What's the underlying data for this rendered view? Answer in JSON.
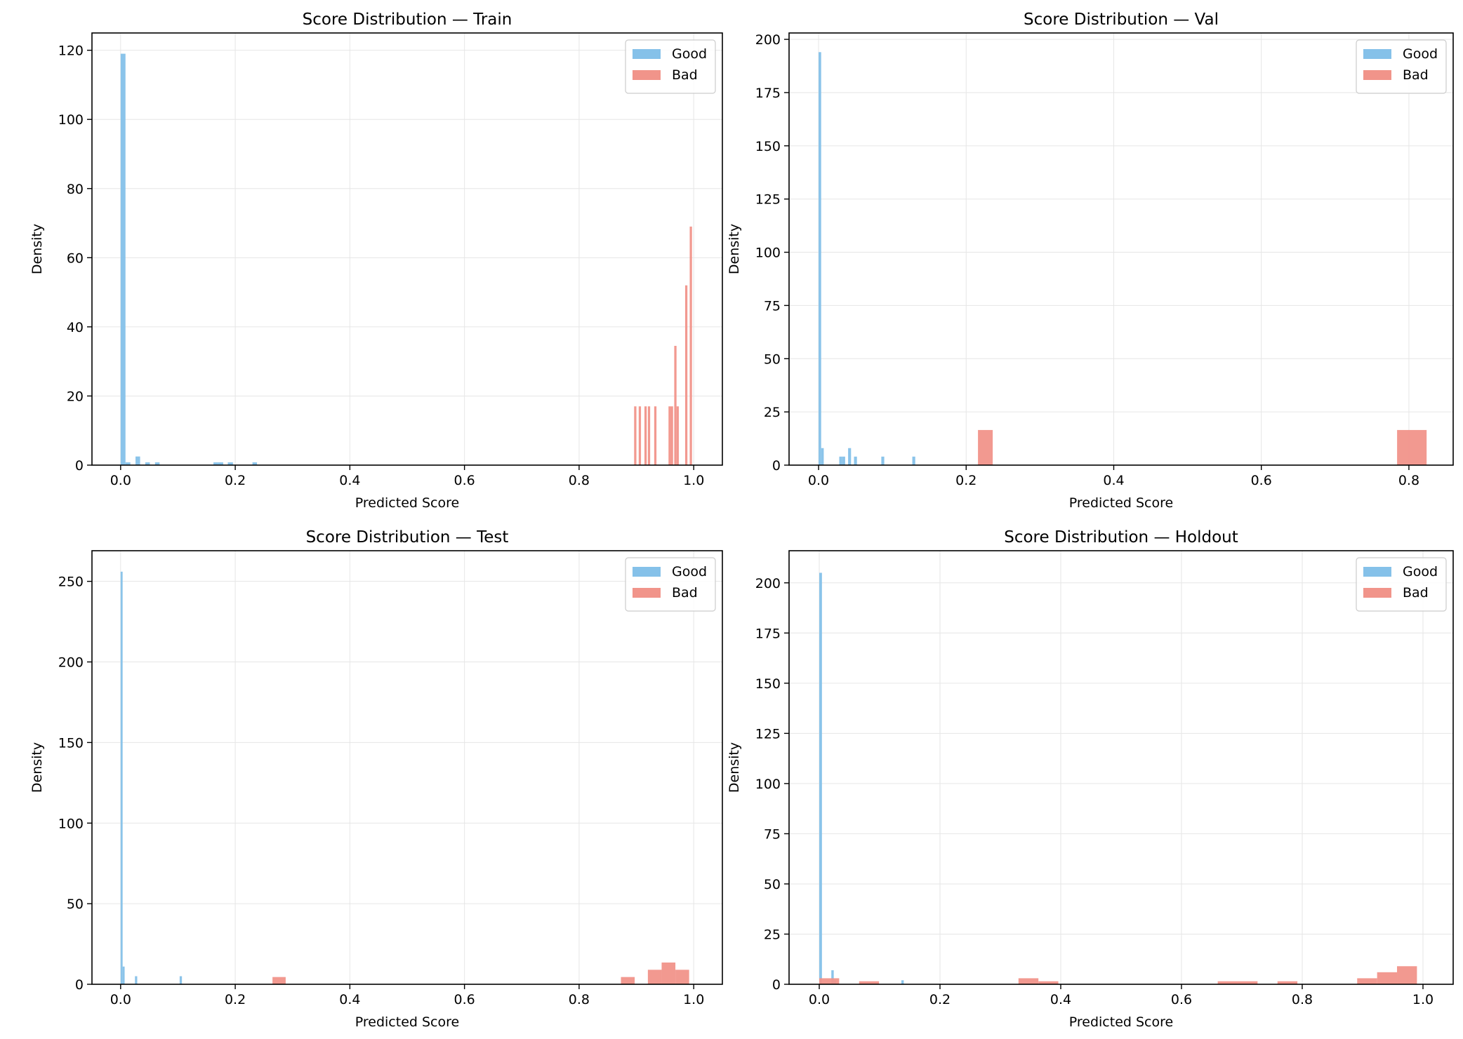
{
  "colors": {
    "good": "#85c1e9",
    "bad": "#f1948a"
  },
  "chart_data": [
    {
      "type": "histogram",
      "title": "Score Distribution — Train",
      "xlabel": "Predicted Score",
      "ylabel": "Density",
      "xlim": [
        -0.05,
        1.05
      ],
      "ylim": [
        0,
        125
      ],
      "xticks": [
        "0.0",
        "0.2",
        "0.4",
        "0.6",
        "0.8",
        "1.0"
      ],
      "yticks": [
        "0",
        "20",
        "40",
        "60",
        "80",
        "100",
        "120"
      ],
      "grid": true,
      "legend": {
        "position": "top-right",
        "entries": [
          "Good",
          "Bad"
        ]
      },
      "series": [
        {
          "name": "Good",
          "bins": [
            {
              "x0": 0.0,
              "x1": 0.0085,
              "y": 119
            },
            {
              "x0": 0.0085,
              "x1": 0.017,
              "y": 0.8
            },
            {
              "x0": 0.026,
              "x1": 0.034,
              "y": 2.5
            },
            {
              "x0": 0.043,
              "x1": 0.051,
              "y": 0.8
            },
            {
              "x0": 0.06,
              "x1": 0.068,
              "y": 0.8
            },
            {
              "x0": 0.162,
              "x1": 0.17,
              "y": 0.8
            },
            {
              "x0": 0.17,
              "x1": 0.179,
              "y": 0.8
            },
            {
              "x0": 0.187,
              "x1": 0.196,
              "y": 0.8
            },
            {
              "x0": 0.23,
              "x1": 0.238,
              "y": 0.8
            }
          ]
        },
        {
          "name": "Bad",
          "bins": [
            {
              "x0": 0.896,
              "x1": 0.9,
              "y": 17
            },
            {
              "x0": 0.904,
              "x1": 0.908,
              "y": 17
            },
            {
              "x0": 0.914,
              "x1": 0.918,
              "y": 17
            },
            {
              "x0": 0.92,
              "x1": 0.924,
              "y": 17
            },
            {
              "x0": 0.931,
              "x1": 0.935,
              "y": 17
            },
            {
              "x0": 0.956,
              "x1": 0.96,
              "y": 17
            },
            {
              "x0": 0.96,
              "x1": 0.964,
              "y": 17
            },
            {
              "x0": 0.966,
              "x1": 0.97,
              "y": 34.5
            },
            {
              "x0": 0.97,
              "x1": 0.974,
              "y": 17
            },
            {
              "x0": 0.985,
              "x1": 0.989,
              "y": 52
            },
            {
              "x0": 0.993,
              "x1": 0.997,
              "y": 69
            }
          ]
        }
      ]
    },
    {
      "type": "histogram",
      "title": "Score Distribution — Val",
      "xlabel": "Predicted Score",
      "ylabel": "Density",
      "xlim": [
        -0.04,
        0.86
      ],
      "ylim": [
        0,
        203
      ],
      "xticks": [
        "0.0",
        "0.2",
        "0.4",
        "0.6",
        "0.8"
      ],
      "yticks": [
        "0",
        "25",
        "50",
        "75",
        "100",
        "125",
        "150",
        "175",
        "200"
      ],
      "grid": true,
      "legend": {
        "position": "top-right",
        "entries": [
          "Good",
          "Bad"
        ]
      },
      "series": [
        {
          "name": "Good",
          "bins": [
            {
              "x0": 0.0,
              "x1": 0.0035,
              "y": 194
            },
            {
              "x0": 0.0035,
              "x1": 0.007,
              "y": 8
            },
            {
              "x0": 0.028,
              "x1": 0.032,
              "y": 4
            },
            {
              "x0": 0.032,
              "x1": 0.036,
              "y": 4
            },
            {
              "x0": 0.04,
              "x1": 0.044,
              "y": 8
            },
            {
              "x0": 0.048,
              "x1": 0.052,
              "y": 4
            },
            {
              "x0": 0.085,
              "x1": 0.089,
              "y": 4
            },
            {
              "x0": 0.127,
              "x1": 0.131,
              "y": 4
            }
          ]
        },
        {
          "name": "Bad",
          "bins": [
            {
              "x0": 0.216,
              "x1": 0.236,
              "y": 16.5
            },
            {
              "x0": 0.784,
              "x1": 0.824,
              "y": 16.5
            }
          ]
        }
      ]
    },
    {
      "type": "histogram",
      "title": "Score Distribution — Test",
      "xlabel": "Predicted Score",
      "ylabel": "Density",
      "xlim": [
        -0.05,
        1.05
      ],
      "ylim": [
        0,
        269
      ],
      "xticks": [
        "0.0",
        "0.2",
        "0.4",
        "0.6",
        "0.8",
        "1.0"
      ],
      "yticks": [
        "0",
        "50",
        "100",
        "150",
        "200",
        "250"
      ],
      "grid": true,
      "legend": {
        "position": "top-right",
        "entries": [
          "Good",
          "Bad"
        ]
      },
      "series": [
        {
          "name": "Good",
          "bins": [
            {
              "x0": 0.0,
              "x1": 0.0035,
              "y": 256
            },
            {
              "x0": 0.0035,
              "x1": 0.007,
              "y": 11
            },
            {
              "x0": 0.025,
              "x1": 0.029,
              "y": 5
            },
            {
              "x0": 0.103,
              "x1": 0.107,
              "y": 5
            }
          ]
        },
        {
          "name": "Bad",
          "bins": [
            {
              "x0": 0.265,
              "x1": 0.288,
              "y": 4.5
            },
            {
              "x0": 0.873,
              "x1": 0.897,
              "y": 4.5
            },
            {
              "x0": 0.92,
              "x1": 0.944,
              "y": 9
            },
            {
              "x0": 0.944,
              "x1": 0.968,
              "y": 13.5
            },
            {
              "x0": 0.968,
              "x1": 0.992,
              "y": 9
            }
          ]
        }
      ]
    },
    {
      "type": "histogram",
      "title": "Score Distribution — Holdout",
      "xlabel": "Predicted Score",
      "ylabel": "Density",
      "xlim": [
        -0.05,
        1.05
      ],
      "ylim": [
        0,
        216
      ],
      "xticks": [
        "0.0",
        "0.2",
        "0.4",
        "0.6",
        "0.8",
        "1.0"
      ],
      "yticks": [
        "0",
        "25",
        "50",
        "75",
        "100",
        "125",
        "150",
        "175",
        "200"
      ],
      "grid": true,
      "legend": {
        "position": "top-right",
        "entries": [
          "Good",
          "Bad"
        ]
      },
      "series": [
        {
          "name": "Good",
          "bins": [
            {
              "x0": 0.0,
              "x1": 0.0045,
              "y": 205
            },
            {
              "x0": 0.02,
              "x1": 0.024,
              "y": 7
            },
            {
              "x0": 0.024,
              "x1": 0.028,
              "y": 2
            },
            {
              "x0": 0.136,
              "x1": 0.14,
              "y": 2
            }
          ]
        },
        {
          "name": "Bad",
          "bins": [
            {
              "x0": 0.0,
              "x1": 0.033,
              "y": 3
            },
            {
              "x0": 0.066,
              "x1": 0.099,
              "y": 1.5
            },
            {
              "x0": 0.33,
              "x1": 0.363,
              "y": 3
            },
            {
              "x0": 0.363,
              "x1": 0.396,
              "y": 1.5
            },
            {
              "x0": 0.66,
              "x1": 0.693,
              "y": 1.5
            },
            {
              "x0": 0.693,
              "x1": 0.726,
              "y": 1.5
            },
            {
              "x0": 0.759,
              "x1": 0.792,
              "y": 1.5
            },
            {
              "x0": 0.891,
              "x1": 0.924,
              "y": 3
            },
            {
              "x0": 0.924,
              "x1": 0.957,
              "y": 6
            },
            {
              "x0": 0.957,
              "x1": 0.99,
              "y": 9
            }
          ]
        }
      ]
    }
  ]
}
